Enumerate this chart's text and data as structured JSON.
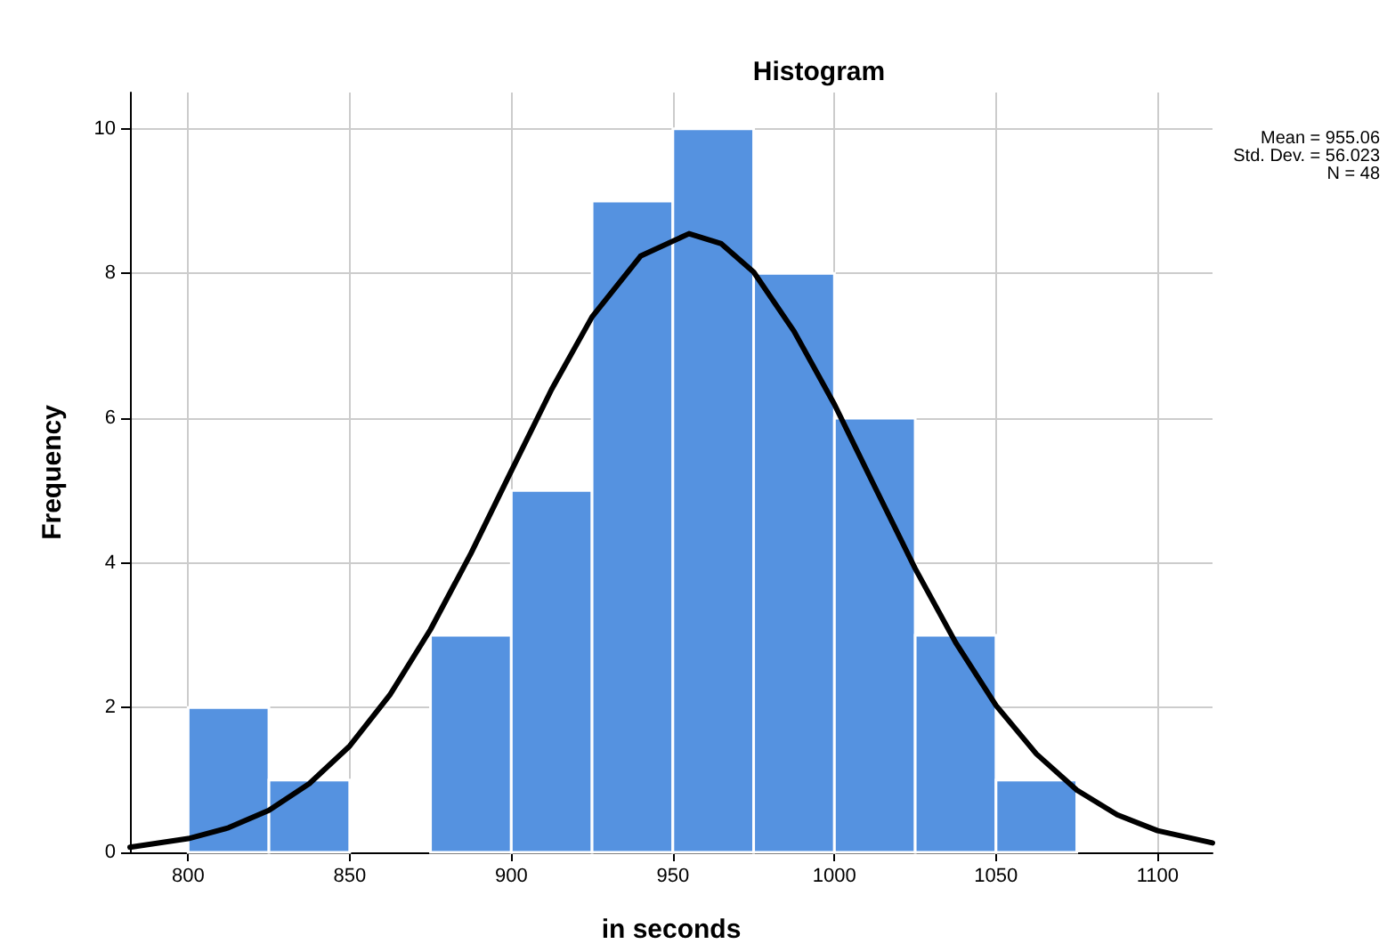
{
  "chart_data": {
    "type": "histogram",
    "title": "Histogram",
    "xlabel": "in seconds",
    "ylabel": "Frequency",
    "bins": [
      800,
      825,
      850,
      875,
      900,
      925,
      950,
      975,
      1000,
      1025,
      1050,
      1075
    ],
    "values": [
      2,
      1,
      0,
      3,
      5,
      9,
      10,
      8,
      6,
      3,
      1
    ],
    "color": "#5592e0",
    "series": [
      {
        "type": "line",
        "color": "#000000",
        "x": [
          782,
          800,
          812.5,
          825,
          837.5,
          850,
          862.5,
          875,
          887.5,
          900,
          912.5,
          925,
          940,
          955,
          965,
          975,
          987.5,
          1000,
          1012.5,
          1025,
          1037.5,
          1050,
          1062.5,
          1075,
          1087.5,
          1100,
          1117
        ],
        "values": [
          0.07,
          0.19,
          0.34,
          0.58,
          0.95,
          1.47,
          2.18,
          3.08,
          4.13,
          5.27,
          6.4,
          7.4,
          8.24,
          8.55,
          8.41,
          8.02,
          7.2,
          6.19,
          5.05,
          3.92,
          2.9,
          2.03,
          1.36,
          0.86,
          0.52,
          0.3,
          0.13
        ]
      }
    ],
    "xlim": [
      782,
      1117
    ],
    "xticks": [
      800,
      850,
      900,
      950,
      1000,
      1050,
      1100
    ],
    "ylim": [
      0,
      10.5
    ],
    "yticks": [
      0,
      2,
      4,
      6,
      8,
      10
    ],
    "grid": true,
    "legend": false,
    "marker": "none",
    "line_style": "solid",
    "annotations": [
      "Mean = 955.06",
      "Std. Dev. = 56.023",
      "N = 48"
    ]
  }
}
